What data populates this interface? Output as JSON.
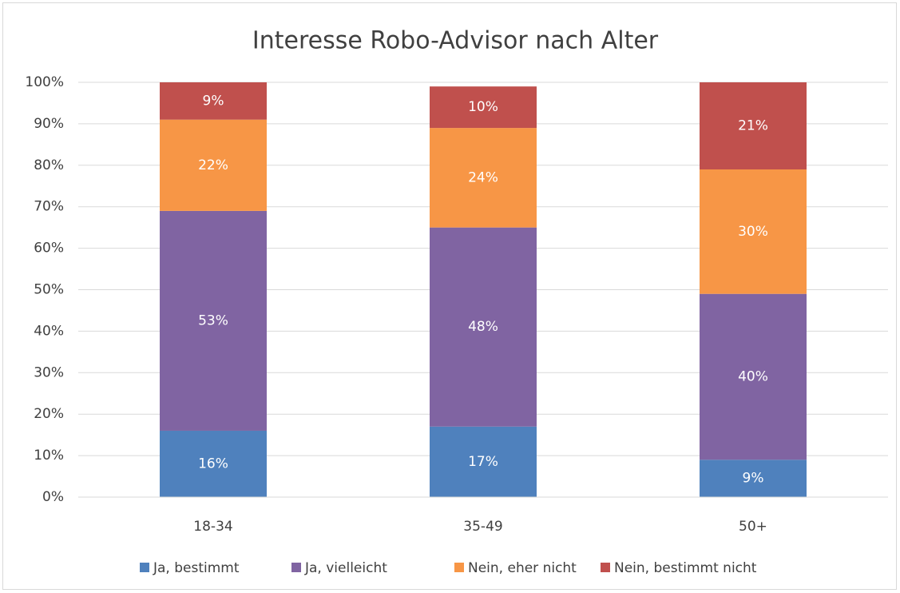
{
  "chart_data": {
    "type": "stacked_bar",
    "title": "Interesse Robo-Advisor nach Alter",
    "categories": [
      "18-34",
      "35-49",
      "50+"
    ],
    "series": [
      {
        "name": "Ja, bestimmt",
        "color": "#4f81bd",
        "values": [
          16,
          17,
          9
        ],
        "value_labels": [
          "16%",
          "17%",
          "9%"
        ]
      },
      {
        "name": "Ja, vielleicht",
        "color": "#8064a2",
        "values": [
          53,
          48,
          40
        ],
        "value_labels": [
          "53%",
          "48%",
          "40%"
        ]
      },
      {
        "name": "Nein, eher nicht",
        "color": "#f79646",
        "values": [
          22,
          24,
          30
        ],
        "value_labels": [
          "22%",
          "24%",
          "30%"
        ]
      },
      {
        "name": "Nein, bestimmt nicht",
        "color": "#c0504d",
        "values": [
          9,
          10,
          21
        ],
        "value_labels": [
          "9%",
          "10%",
          "21%"
        ]
      }
    ],
    "ylim": [
      0,
      100
    ],
    "yticks": [
      {
        "value": 0,
        "label": "0%"
      },
      {
        "value": 10,
        "label": "10%"
      },
      {
        "value": 20,
        "label": "20%"
      },
      {
        "value": 30,
        "label": "30%"
      },
      {
        "value": 40,
        "label": "40%"
      },
      {
        "value": 50,
        "label": "50%"
      },
      {
        "value": 60,
        "label": "60%"
      },
      {
        "value": 70,
        "label": "70%"
      },
      {
        "value": 80,
        "label": "80%"
      },
      {
        "value": 90,
        "label": "90%"
      },
      {
        "value": 100,
        "label": "100%"
      }
    ],
    "grid": true,
    "legend": "bottom"
  }
}
